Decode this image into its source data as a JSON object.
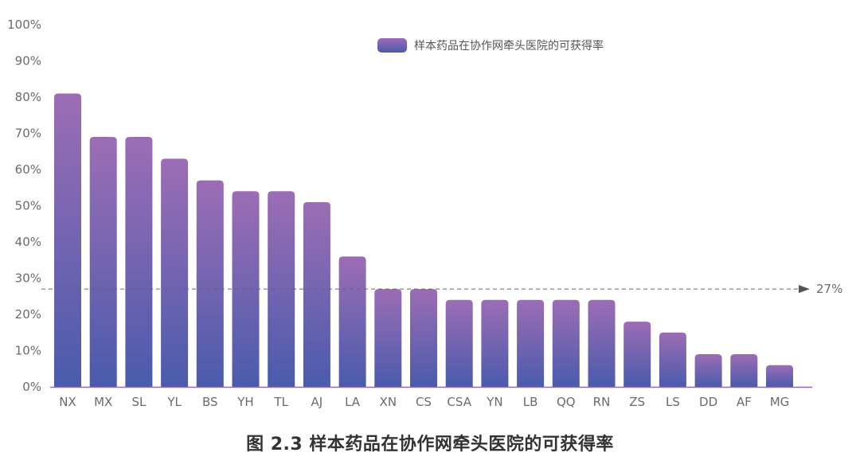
{
  "chart_data": {
    "type": "bar",
    "categories": [
      "NX",
      "MX",
      "SL",
      "YL",
      "BS",
      "YH",
      "TL",
      "AJ",
      "LA",
      "XN",
      "CS",
      "CSA",
      "YN",
      "LB",
      "QQ",
      "RN",
      "ZS",
      "LS",
      "DD",
      "AF",
      "MG"
    ],
    "series": [
      {
        "name": "样本药品在协作网牵头医院的可获得率",
        "values": [
          81,
          69,
          69,
          63,
          57,
          54,
          54,
          51,
          36,
          27,
          27,
          24,
          24,
          24,
          24,
          24,
          18,
          15,
          9,
          9,
          6
        ]
      }
    ],
    "ylim": [
      0,
      100
    ],
    "yticks": [
      "0%",
      "10%",
      "20%",
      "30%",
      "40%",
      "50%",
      "60%",
      "70%",
      "80%",
      "90%",
      "100%"
    ],
    "reference_line": {
      "value": 27,
      "label": "27%",
      "style": "dashed-arrow"
    },
    "legend_position": "top-right",
    "grid": false,
    "colors": {
      "bar_top": "#9c6db5",
      "bar_bottom": "#4a5bac",
      "axis": "#8e6bb3",
      "reference": "#666666"
    },
    "caption": "图 2.3 样本药品在协作网牵头医院的可获得率"
  }
}
